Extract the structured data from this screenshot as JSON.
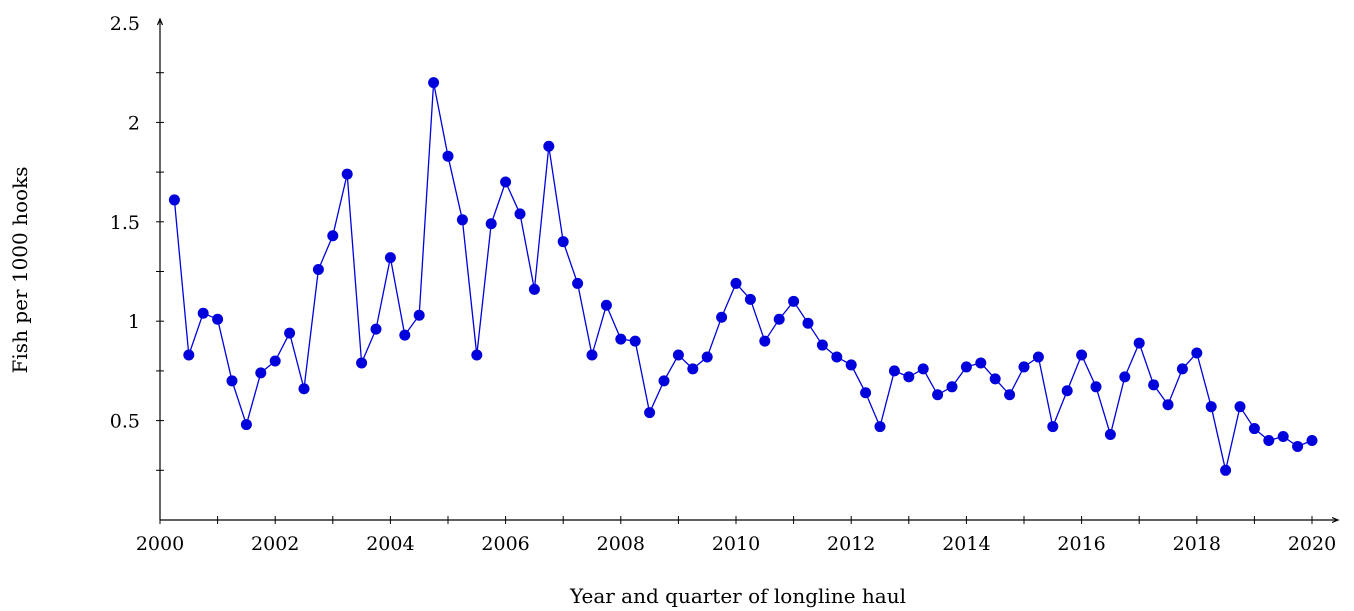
{
  "chart_data": {
    "type": "line",
    "title": "",
    "xlabel": "Year and quarter of longline haul",
    "ylabel": "Fish per 1000 hooks",
    "xlim": [
      2000,
      2020
    ],
    "ylim": [
      0,
      2.5
    ],
    "x_ticks": [
      2000,
      2002,
      2004,
      2006,
      2008,
      2010,
      2012,
      2014,
      2016,
      2018,
      2020
    ],
    "x_tick_labels": [
      "2000",
      "2002",
      "2004",
      "2006",
      "2008",
      "2010",
      "2012",
      "2014",
      "2016",
      "2018",
      "2020"
    ],
    "y_ticks": [
      0.5,
      1,
      1.5,
      2,
      2.5
    ],
    "y_tick_labels": [
      "0.5",
      "1",
      "1.5",
      "2",
      "2.5"
    ],
    "grid": false,
    "legend": "none",
    "color": "#0000dd",
    "series": [
      {
        "x": [
          2000.25,
          2000.5,
          2000.75,
          2001.0,
          2001.25,
          2001.5,
          2001.75,
          2002.0,
          2002.25,
          2002.5,
          2002.75,
          2003.0,
          2003.25,
          2003.5,
          2003.75,
          2004.0,
          2004.25,
          2004.5,
          2004.75,
          2005.0,
          2005.25,
          2005.5,
          2005.75,
          2006.0,
          2006.25,
          2006.5,
          2006.75,
          2007.0,
          2007.25,
          2007.5,
          2007.75,
          2008.0,
          2008.25,
          2008.5,
          2008.75,
          2009.0,
          2009.25,
          2009.5,
          2009.75,
          2010.0,
          2010.25,
          2010.5,
          2010.75,
          2011.0,
          2011.25,
          2011.5,
          2011.75,
          2012.0,
          2012.25,
          2012.5,
          2012.75,
          2013.0,
          2013.25,
          2013.5,
          2013.75,
          2014.0,
          2014.25,
          2014.5,
          2014.75,
          2015.0,
          2015.25,
          2015.5,
          2015.75,
          2016.0,
          2016.25,
          2016.5,
          2016.75,
          2017.0,
          2017.25,
          2017.5,
          2017.75,
          2018.0,
          2018.25,
          2018.5,
          2018.75,
          2019.0,
          2019.25,
          2019.5,
          2019.75,
          2020.0
        ],
        "y": [
          1.61,
          0.83,
          1.04,
          1.01,
          0.7,
          0.48,
          0.74,
          0.8,
          0.94,
          0.66,
          1.26,
          1.43,
          1.74,
          0.79,
          0.96,
          1.32,
          0.93,
          1.03,
          2.2,
          1.83,
          1.51,
          0.83,
          1.49,
          1.7,
          1.54,
          1.16,
          1.88,
          1.4,
          1.19,
          0.83,
          1.08,
          0.91,
          0.9,
          0.54,
          0.7,
          0.83,
          0.76,
          0.82,
          1.02,
          1.19,
          1.11,
          0.9,
          1.01,
          1.1,
          0.99,
          0.88,
          0.82,
          0.78,
          0.64,
          0.47,
          0.75,
          0.72,
          0.76,
          0.63,
          0.67,
          0.77,
          0.79,
          0.71,
          0.63,
          0.77,
          0.82,
          0.47,
          0.65,
          0.83,
          0.67,
          0.43,
          0.72,
          0.89,
          0.68,
          0.58,
          0.76,
          0.84,
          0.57,
          0.25,
          0.57,
          0.46,
          0.4,
          0.42,
          0.37,
          0.4
        ]
      }
    ]
  }
}
